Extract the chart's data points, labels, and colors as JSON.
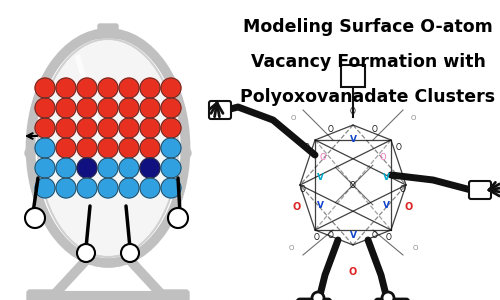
{
  "title_lines": [
    "Modeling Surface O-atom",
    "Vacancy Formation with",
    "Polyoxovanadate Clusters"
  ],
  "title_fontsize": 12.5,
  "title_fontweight": "bold",
  "bg_color": "#ffffff",
  "mirror_color": "#c0c0c0",
  "dot_red": "#e83020",
  "dot_blue": "#30a0e0",
  "dot_dark_blue": "#101080",
  "cluster_v_blue": "#1144cc",
  "cluster_v_cyan": "#00aacc",
  "cluster_o_red": "#dd2222",
  "cluster_o_pink": "#ee77bb",
  "cluster_o_gray": "#888888",
  "cluster_black": "#111111"
}
